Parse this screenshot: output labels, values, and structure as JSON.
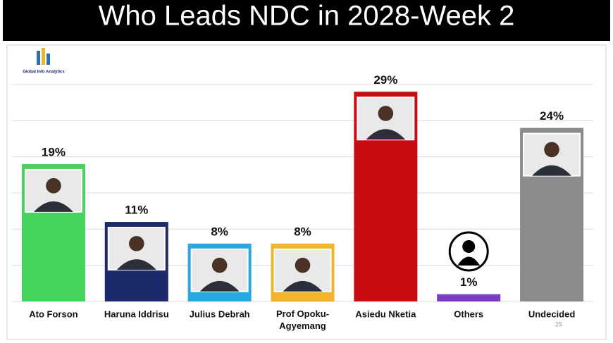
{
  "chart_data": {
    "type": "bar",
    "title": "Who Leads NDC in 2028-Week 2",
    "brand": "Global Info Analytics",
    "page_number": "25",
    "categories": [
      "Ato Forson",
      "Haruna Iddrisu",
      "Julius Debrah",
      "Prof Opoku-Agyemang",
      "Asiedu Nketia",
      "Others",
      "Undecided"
    ],
    "values": [
      19,
      11,
      8,
      8,
      29,
      1,
      24
    ],
    "value_labels": [
      "19%",
      "11%",
      "8%",
      "8%",
      "29%",
      "1%",
      "24%"
    ],
    "colors": [
      "#45d35c",
      "#1c2a6b",
      "#2aa7e2",
      "#f3b32b",
      "#c80d12",
      "#7a3dc4",
      "#8b8b8b"
    ],
    "ylim": [
      0,
      30
    ],
    "ygrid": [
      0,
      5,
      10,
      15,
      20,
      25,
      30
    ],
    "grid": true
  }
}
